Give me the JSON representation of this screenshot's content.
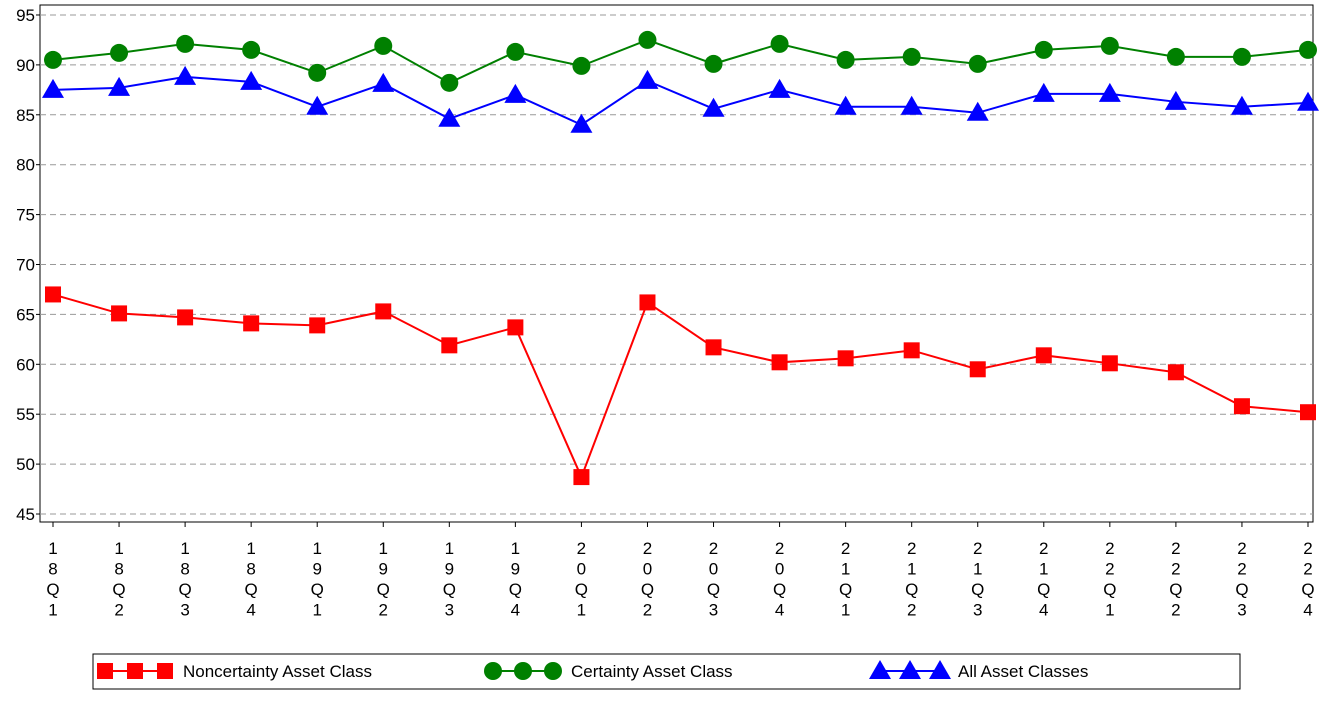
{
  "chart_data": {
    "type": "line",
    "categories": [
      "18Q1",
      "18Q2",
      "18Q3",
      "18Q4",
      "19Q1",
      "19Q2",
      "19Q3",
      "19Q4",
      "20Q1",
      "20Q2",
      "20Q3",
      "20Q4",
      "21Q1",
      "21Q2",
      "21Q3",
      "21Q4",
      "22Q1",
      "22Q2",
      "22Q3",
      "22Q4"
    ],
    "series": [
      {
        "name": "Noncertainty Asset Class",
        "color": "#ff0000",
        "marker": "square",
        "values": [
          67.0,
          65.1,
          64.7,
          64.1,
          63.9,
          65.3,
          61.9,
          63.7,
          48.7,
          66.2,
          61.7,
          60.2,
          60.6,
          61.4,
          59.5,
          60.9,
          60.1,
          59.2,
          55.8,
          55.2
        ]
      },
      {
        "name": "Certainty Asset Class",
        "color": "#008000",
        "marker": "circle",
        "values": [
          90.5,
          91.2,
          92.1,
          91.5,
          89.2,
          91.9,
          88.2,
          91.3,
          89.9,
          92.5,
          90.1,
          92.1,
          90.5,
          90.8,
          90.1,
          91.5,
          91.9,
          90.8,
          90.8,
          91.5
        ]
      },
      {
        "name": "All Asset Classes",
        "color": "#0000ff",
        "marker": "triangle",
        "values": [
          87.5,
          87.7,
          88.8,
          88.3,
          85.8,
          88.1,
          84.6,
          87.0,
          84.0,
          88.4,
          85.6,
          87.5,
          85.8,
          85.8,
          85.2,
          87.1,
          87.1,
          86.3,
          85.8,
          86.2
        ]
      }
    ],
    "ylim": [
      44.2,
      96
    ],
    "yticks": [
      45,
      50,
      55,
      60,
      65,
      70,
      75,
      80,
      85,
      90,
      95
    ],
    "grid": true,
    "legend": "bottom"
  }
}
